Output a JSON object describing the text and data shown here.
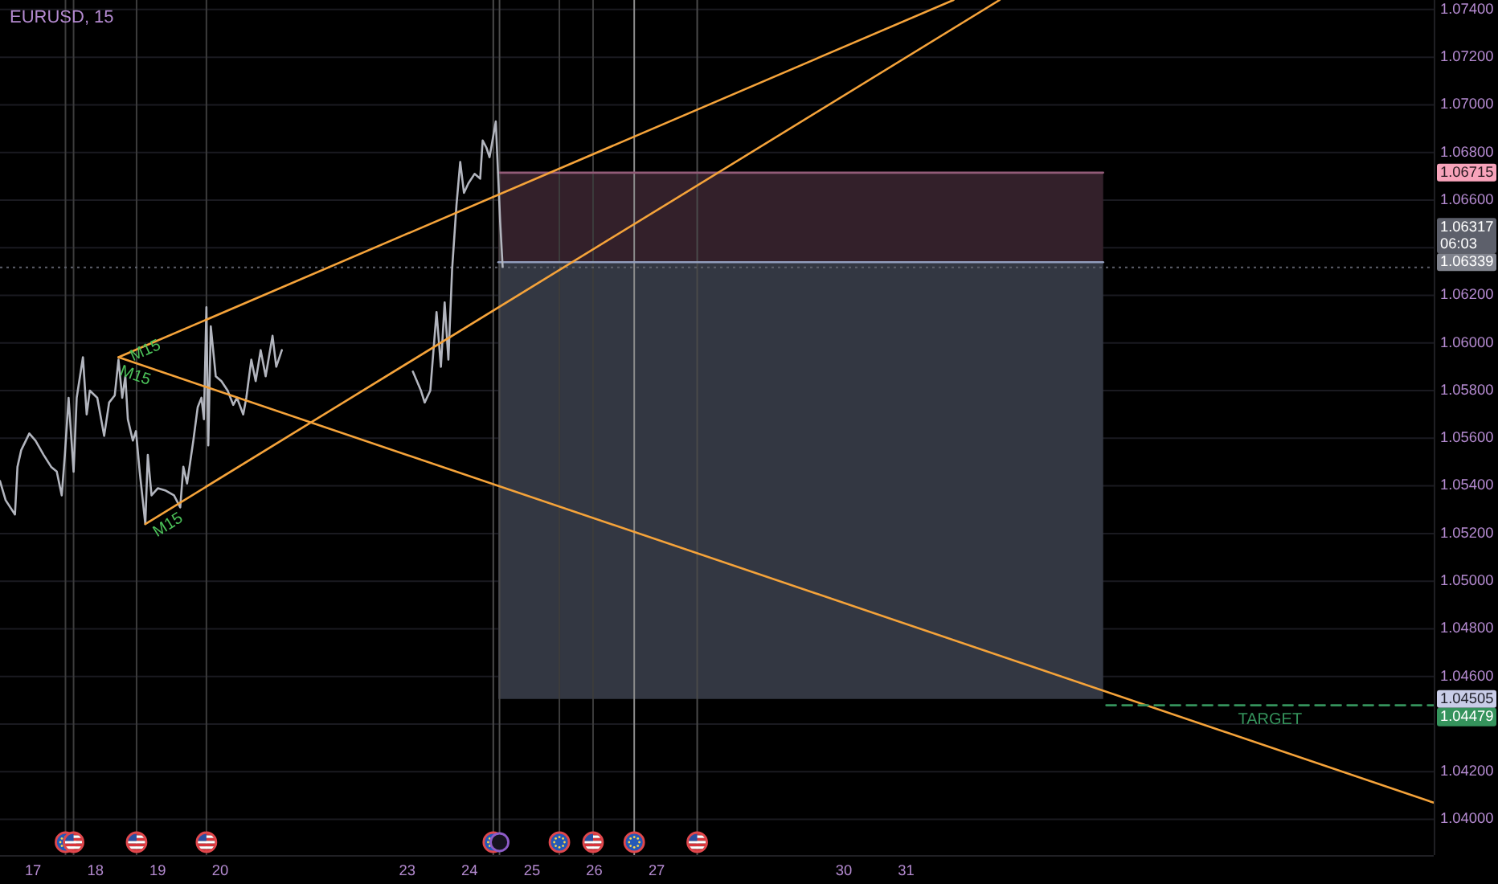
{
  "chart_data": {
    "type": "line",
    "title": "EURUSD, 15",
    "xlim": [
      16.47,
      39.46
    ],
    "ylim": [
      1.0385,
      1.0744
    ],
    "xticks": [
      17,
      18,
      19,
      20,
      23,
      24,
      25,
      26,
      27,
      30,
      31
    ],
    "yticks": [
      {
        "value": 1.04,
        "label": "1.04000"
      },
      {
        "value": 1.042,
        "label": "1.04200"
      },
      {
        "value": 1.044,
        "label": null
      },
      {
        "value": 1.04505,
        "label": "1.04505"
      },
      {
        "value": 1.046,
        "label": "1.04600"
      },
      {
        "value": 1.048,
        "label": "1.04800"
      },
      {
        "value": 1.05,
        "label": "1.05000"
      },
      {
        "value": 1.052,
        "label": "1.05200"
      },
      {
        "value": 1.054,
        "label": "1.05400"
      },
      {
        "value": 1.056,
        "label": "1.05600"
      },
      {
        "value": 1.058,
        "label": "1.05800"
      },
      {
        "value": 1.06,
        "label": "1.06000"
      },
      {
        "value": 1.062,
        "label": "1.06200"
      },
      {
        "value": 1.06339,
        "label": "1.06339"
      },
      {
        "value": 1.064,
        "label": null
      },
      {
        "value": 1.066,
        "label": "1.06600"
      },
      {
        "value": 1.06715,
        "label": "1.06715"
      },
      {
        "value": 1.068,
        "label": "1.06800"
      },
      {
        "value": 1.07,
        "label": "1.07000"
      },
      {
        "value": 1.072,
        "label": "1.07200"
      },
      {
        "value": 1.074,
        "label": "1.07400"
      }
    ],
    "grid": "y",
    "series": [
      {
        "type": "line",
        "color": "#925b78",
        "x": [
          24.46,
          34.16
        ],
        "values": [
          1.06715,
          1.06715
        ],
        "lower": [
          1.06339,
          1.06339
        ],
        "upper": [
          1.06715,
          1.06715
        ]
      },
      {
        "type": "line",
        "color": "#929dbd",
        "x": [
          24.46,
          34.16
        ],
        "values": [
          1.06339,
          1.06339
        ],
        "lower": [
          1.04505,
          1.04505
        ],
        "upper": [
          1.06339,
          1.06339
        ]
      },
      {
        "color": "#b2b5be",
        "x": [
          16.47,
          16.56,
          16.71,
          16.75,
          16.81,
          16.94,
          17.04,
          17.17,
          17.29,
          17.38,
          17.46,
          17.51,
          17.57,
          17.65,
          17.7,
          17.8,
          17.86,
          17.91,
          18.03,
          18.14,
          18.22,
          18.31,
          18.37,
          18.43,
          18.48,
          18.52,
          18.6,
          18.65,
          18.71,
          18.8,
          18.84,
          18.9,
          19.0,
          19.13,
          19.26,
          19.36,
          19.41,
          19.47,
          19.57,
          19.64,
          19.7,
          19.74,
          19.78,
          19.81,
          19.85,
          19.93,
          20.02,
          20.12,
          20.21,
          20.27,
          20.37,
          20.42,
          20.5,
          20.57,
          20.65,
          20.73,
          20.84,
          20.9,
          20.99
        ],
        "values": [
          1.0542,
          1.0534,
          1.0528,
          1.0548,
          1.0555,
          1.0562,
          1.0559,
          1.0553,
          1.0548,
          1.0546,
          1.0536,
          1.0553,
          1.0577,
          1.0546,
          1.0577,
          1.0594,
          1.057,
          1.058,
          1.0577,
          1.0561,
          1.0575,
          1.0578,
          1.0593,
          1.0577,
          1.0586,
          1.0568,
          1.0559,
          1.0563,
          1.0546,
          1.0524,
          1.0553,
          1.0536,
          1.0539,
          1.0538,
          1.0536,
          1.0531,
          1.0548,
          1.0541,
          1.0559,
          1.0573,
          1.0577,
          1.0568,
          1.0615,
          1.0557,
          1.0607,
          1.0586,
          1.0584,
          1.058,
          1.0574,
          1.0577,
          1.057,
          1.0577,
          1.0593,
          1.0584,
          1.0597,
          1.0586,
          1.0603,
          1.059,
          1.0597
        ]
      },
      {
        "color": "#b2b5be",
        "x": [
          23.09,
          23.22,
          23.28,
          23.37,
          23.47,
          23.54,
          23.6,
          23.66,
          23.72,
          23.79,
          23.85,
          23.91,
          23.98,
          24.08,
          24.17,
          24.21,
          24.27,
          24.32,
          24.42,
          24.46,
          24.49,
          24.53
        ],
        "values": [
          1.0588,
          1.058,
          1.0575,
          1.058,
          1.0613,
          1.059,
          1.0617,
          1.0593,
          1.0631,
          1.0658,
          1.0676,
          1.0663,
          1.0667,
          1.0671,
          1.0669,
          1.0685,
          1.0682,
          1.0678,
          1.0693,
          1.0669,
          1.0651,
          1.0632
        ]
      },
      {
        "type": "line",
        "color": "#f5a33a",
        "x": [
          18.37,
          31.76
        ],
        "values": [
          1.0594,
          1.0744
        ]
      },
      {
        "type": "line",
        "color": "#f5a33a",
        "x": [
          18.8,
          32.5
        ],
        "values": [
          1.0524,
          1.0744
        ]
      },
      {
        "type": "line",
        "color": "#f5a33a",
        "x": [
          18.37,
          39.46
        ],
        "values": [
          1.0594,
          1.0407
        ]
      },
      {
        "type": "line",
        "name": "TARGET",
        "color": "#35935c",
        "line_style": "dashed",
        "x": [
          34.21,
          39.46
        ],
        "values": [
          1.04479,
          1.04479
        ],
        "value_labels": [
          null,
          "1.04479"
        ]
      }
    ],
    "ref_lines": [
      {
        "axis": "x",
        "value": 17.52,
        "color": "#3c3c3c"
      },
      {
        "axis": "x",
        "value": 17.65,
        "color": "#3c3c3c"
      },
      {
        "axis": "x",
        "value": 18.66,
        "color": "#3c3c3c"
      },
      {
        "axis": "x",
        "value": 19.78,
        "color": "#3c3c3c"
      },
      {
        "axis": "x",
        "value": 24.38,
        "color": "#4a4a4a"
      },
      {
        "axis": "x",
        "value": 24.48,
        "color": "#4a4a4a"
      },
      {
        "axis": "x",
        "value": 25.44,
        "color": "#3c3c3c"
      },
      {
        "axis": "x",
        "value": 25.98,
        "color": "#3c3c3c"
      },
      {
        "axis": "x",
        "value": 26.64,
        "color": "#8c8c8c"
      },
      {
        "axis": "x",
        "value": 27.65,
        "color": "#4a4a4a"
      },
      {
        "axis": "y",
        "value": 1.06317,
        "label": "1.06317\n06:03",
        "color": "#5d606b",
        "line_style": "dotted"
      }
    ],
    "annotations": [
      {
        "text": "M15",
        "x": 18.55,
        "y": 1.0596
      },
      {
        "text": "M15",
        "x": 18.45,
        "y": 1.0593
      },
      {
        "text": "M15",
        "x": 18.8,
        "y": 1.0524
      }
    ]
  }
}
